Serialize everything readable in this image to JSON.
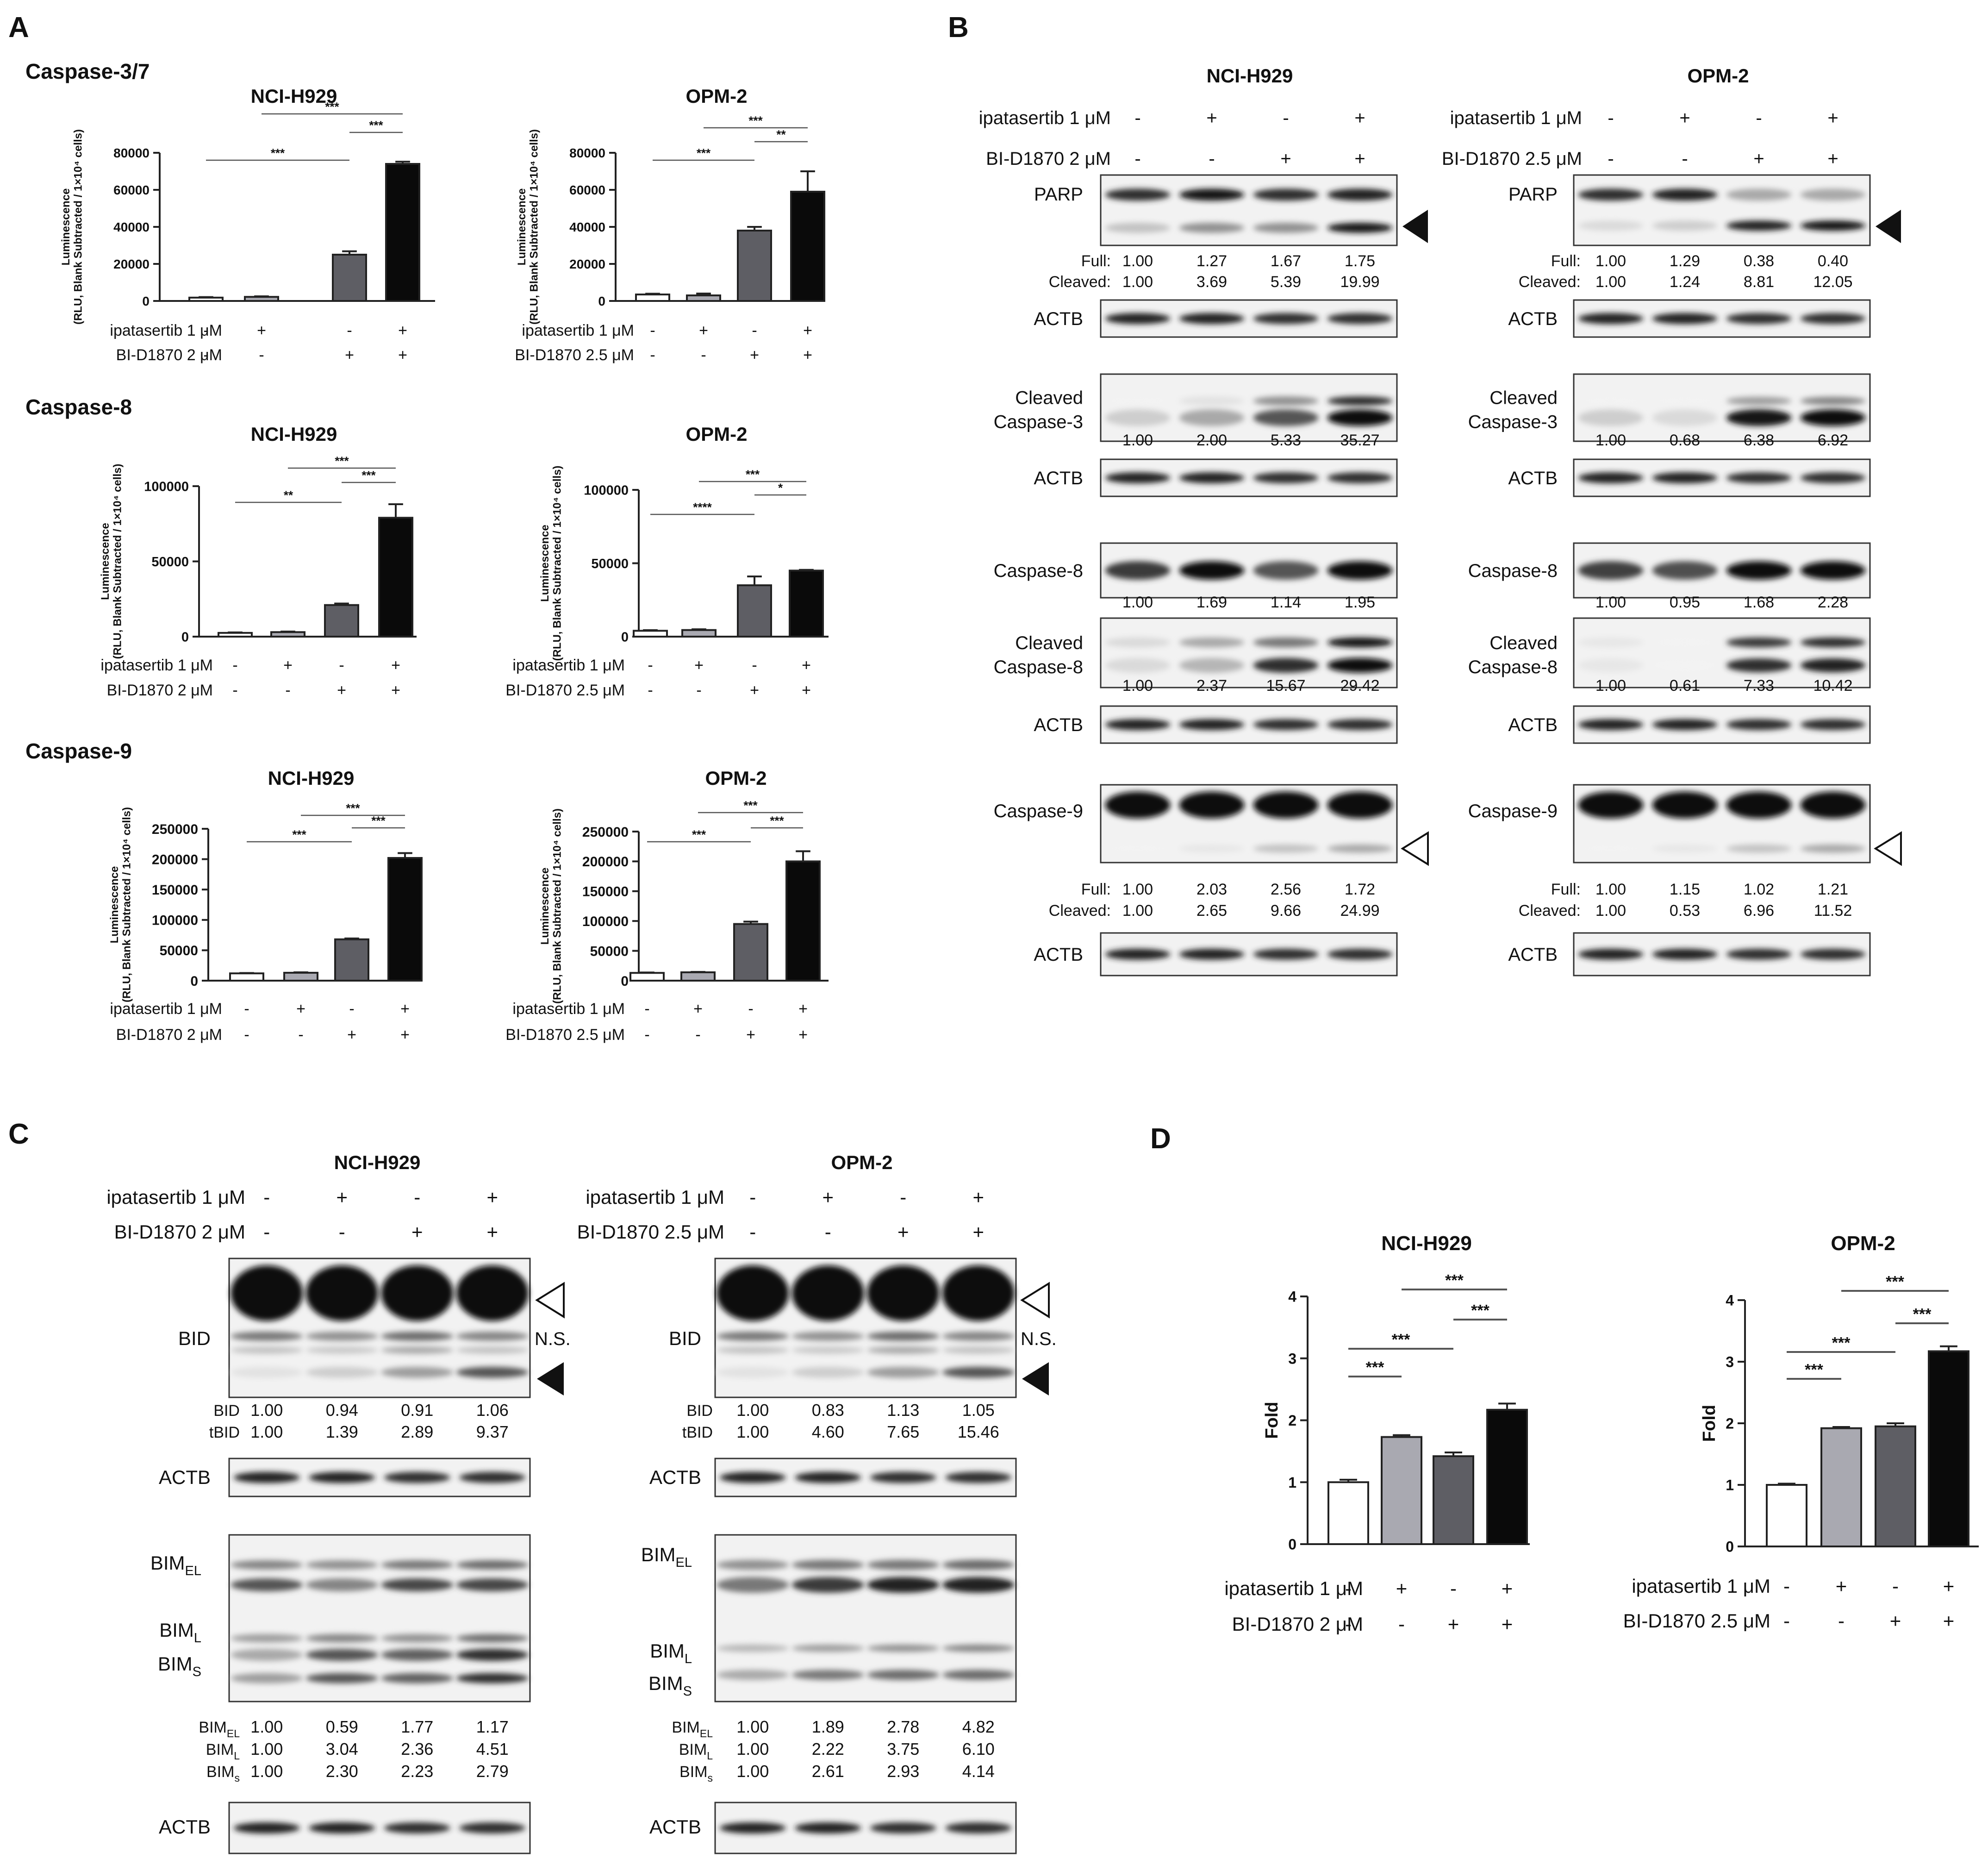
{
  "panel_letters": {
    "a": "A",
    "b": "B",
    "c": "C",
    "d": "D"
  },
  "colors": {
    "white_bar": "#ffffff",
    "light_bar": "#a9a9b1",
    "mid_bar": "#5e5e64",
    "black_bar": "#0a0a0a",
    "line": "#222222",
    "sig_line": "#555555"
  },
  "panel_a": {
    "section_labels": [
      "Caspase-3/7",
      "Caspase-8",
      "Caspase-9"
    ],
    "lines": [
      "NCI-H929",
      "OPM-2"
    ],
    "treat_row1_label": "ipatasertib 1 μM",
    "treat_row2_labels": [
      "BI-D1870 2 μM",
      "BI-D1870 2.5 μM"
    ],
    "treat_row1_marks": [
      "-",
      "+",
      "-",
      "+"
    ],
    "treat_row2_marks": [
      "-",
      "-",
      "+",
      "+"
    ],
    "ylabel_lines": [
      "Luminescence",
      "(RLU, Blank Subtracted / 1×10⁴ cells)"
    ]
  },
  "chart_data": [
    {
      "type": "bar",
      "cell_line": "NCI-H929",
      "assay": "Caspase-3/7",
      "categories": [
        "1",
        "2",
        "3",
        "4"
      ],
      "values": [
        1800,
        2200,
        25000,
        74000
      ],
      "errors": [
        300,
        300,
        1800,
        1200
      ],
      "ylim": [
        0,
        80000
      ],
      "yticks": [
        "0",
        "20000",
        "40000",
        "60000",
        "80000"
      ],
      "ytick_values": [
        0,
        20000,
        40000,
        60000,
        80000
      ],
      "ylabel": "Luminescence (RLU, Blank Subtracted / 1×10⁴ cells)",
      "sig": [
        {
          "a": 1,
          "b": 3,
          "label": "***"
        },
        {
          "a": 3,
          "b": 4,
          "label": "***"
        },
        {
          "a": 2,
          "b": 4,
          "label": "***"
        }
      ]
    },
    {
      "type": "bar",
      "cell_line": "OPM-2",
      "assay": "Caspase-3/7",
      "categories": [
        "1",
        "2",
        "3",
        "4"
      ],
      "values": [
        3500,
        3000,
        38000,
        59000
      ],
      "errors": [
        400,
        1000,
        2000,
        11000
      ],
      "ylim": [
        0,
        80000
      ],
      "yticks": [
        "0",
        "20000",
        "40000",
        "60000",
        "80000"
      ],
      "ytick_values": [
        0,
        20000,
        40000,
        60000,
        80000
      ],
      "ylabel": "Luminescence (RLU, Blank Subtracted / 1×10⁴ cells)",
      "sig": [
        {
          "a": 1,
          "b": 3,
          "label": "***"
        },
        {
          "a": 3,
          "b": 4,
          "label": "**"
        },
        {
          "a": 2,
          "b": 4,
          "label": "***"
        }
      ]
    },
    {
      "type": "bar",
      "cell_line": "NCI-H929",
      "assay": "Caspase-8",
      "categories": [
        "1",
        "2",
        "3",
        "4"
      ],
      "values": [
        2500,
        3000,
        21000,
        79000
      ],
      "errors": [
        300,
        400,
        1000,
        9000
      ],
      "ylim": [
        0,
        100000
      ],
      "yticks": [
        "0",
        "50000",
        "100000"
      ],
      "ytick_values": [
        0,
        50000,
        100000
      ],
      "ylabel": "Luminescence (RLU, Blank Subtracted / 1×10⁴ cells)",
      "sig": [
        {
          "a": 1,
          "b": 3,
          "label": "**"
        },
        {
          "a": 3,
          "b": 4,
          "label": "***"
        },
        {
          "a": 2,
          "b": 4,
          "label": "***"
        }
      ]
    },
    {
      "type": "bar",
      "cell_line": "OPM-2",
      "assay": "Caspase-8",
      "categories": [
        "1",
        "2",
        "3",
        "4"
      ],
      "values": [
        4000,
        4500,
        35000,
        45000
      ],
      "errors": [
        400,
        500,
        6000,
        500
      ],
      "ylim": [
        0,
        100000
      ],
      "yticks": [
        "0",
        "50000",
        "100000"
      ],
      "ytick_values": [
        0,
        50000,
        100000
      ],
      "ylabel": "Luminescence (RLU, Blank Subtracted / 1×10⁴ cells)",
      "sig": [
        {
          "a": 1,
          "b": 3,
          "label": "****"
        },
        {
          "a": 3,
          "b": 4,
          "label": "*"
        },
        {
          "a": 2,
          "b": 4,
          "label": "***"
        }
      ]
    },
    {
      "type": "bar",
      "cell_line": "NCI-H929",
      "assay": "Caspase-9",
      "categories": [
        "1",
        "2",
        "3",
        "4"
      ],
      "values": [
        12000,
        13000,
        68000,
        202000
      ],
      "errors": [
        600,
        700,
        1500,
        8000
      ],
      "ylim": [
        0,
        250000
      ],
      "yticks": [
        "0",
        "50000",
        "100000",
        "150000",
        "200000",
        "250000"
      ],
      "ytick_values": [
        0,
        50000,
        100000,
        150000,
        200000,
        250000
      ],
      "ylabel": "Luminescence (RLU, Blank Subtracted / 1×10⁴ cells)",
      "sig": [
        {
          "a": 1,
          "b": 3,
          "label": "***"
        },
        {
          "a": 3,
          "b": 4,
          "label": "***"
        },
        {
          "a": 2,
          "b": 4,
          "label": "***"
        }
      ]
    },
    {
      "type": "bar",
      "cell_line": "OPM-2",
      "assay": "Caspase-9",
      "categories": [
        "1",
        "2",
        "3",
        "4"
      ],
      "values": [
        13000,
        14000,
        95000,
        200000
      ],
      "errors": [
        700,
        700,
        4000,
        17000
      ],
      "ylim": [
        0,
        250000
      ],
      "yticks": [
        "0",
        "50000",
        "100000",
        "150000",
        "200000",
        "250000"
      ],
      "ytick_values": [
        0,
        50000,
        100000,
        150000,
        200000,
        250000
      ],
      "ylabel": "Luminescence (RLU, Blank Subtracted / 1×10⁴ cells)",
      "sig": [
        {
          "a": 1,
          "b": 3,
          "label": "***"
        },
        {
          "a": 3,
          "b": 4,
          "label": "***"
        },
        {
          "a": 2,
          "b": 4,
          "label": "***"
        }
      ]
    },
    {
      "type": "bar",
      "cell_line": "NCI-H929",
      "assay": "D",
      "categories": [
        "1",
        "2",
        "3",
        "4"
      ],
      "values": [
        1.0,
        1.73,
        1.42,
        2.17
      ],
      "errors": [
        0.04,
        0.03,
        0.06,
        0.1
      ],
      "ylim": [
        0,
        4
      ],
      "yticks": [
        "0",
        "1",
        "2",
        "3",
        "4"
      ],
      "ytick_values": [
        0,
        1,
        2,
        3,
        4
      ],
      "ylabel": "Fold",
      "title": "NCI-H929",
      "sig": [
        {
          "a": 1,
          "b": 2,
          "label": "***"
        },
        {
          "a": 1,
          "b": 3,
          "label": "***"
        },
        {
          "a": 3,
          "b": 4,
          "label": "***"
        },
        {
          "a": 2,
          "b": 4,
          "label": "***"
        }
      ]
    },
    {
      "type": "bar",
      "cell_line": "OPM-2",
      "assay": "D",
      "categories": [
        "1",
        "2",
        "3",
        "4"
      ],
      "values": [
        1.0,
        1.92,
        1.95,
        3.17
      ],
      "errors": [
        0.02,
        0.02,
        0.05,
        0.08
      ],
      "ylim": [
        0,
        4
      ],
      "yticks": [
        "0",
        "1",
        "2",
        "3",
        "4"
      ],
      "ytick_values": [
        0,
        1,
        2,
        3,
        4
      ],
      "ylabel": "Fold",
      "title": "OPM-2",
      "sig": [
        {
          "a": 1,
          "b": 2,
          "label": "***"
        },
        {
          "a": 1,
          "b": 3,
          "label": "***"
        },
        {
          "a": 3,
          "b": 4,
          "label": "***"
        },
        {
          "a": 2,
          "b": 4,
          "label": "***"
        }
      ]
    }
  ],
  "panel_b": {
    "lines": [
      "NCI-H929",
      "OPM-2"
    ],
    "treat_row1_label": "ipatasertib 1 μM",
    "treat_row2_labels": [
      "BI-D1870 2 μM",
      "BI-D1870 2.5 μM"
    ],
    "treat_row1_marks": [
      "-",
      "+",
      "-",
      "+"
    ],
    "treat_row2_marks": [
      "-",
      "-",
      "+",
      "+"
    ],
    "blots_left": [
      {
        "label": [
          "PARP"
        ],
        "kind": "parp",
        "quant": [
          {
            "name": "Full:",
            "vals": [
              "1.00",
              "1.27",
              "1.67",
              "1.75"
            ]
          },
          {
            "name": "Cleaved:",
            "vals": [
              "1.00",
              "3.69",
              "5.39",
              "19.99"
            ]
          }
        ],
        "arrow": "filled"
      },
      {
        "label": [
          "ACTB"
        ],
        "kind": "actb",
        "quant": []
      },
      {
        "label": [
          "Cleaved",
          "Caspase-3"
        ],
        "kind": "cc3",
        "quant": [
          {
            "name": "",
            "vals": [
              "1.00",
              "2.00",
              "5.33",
              "35.27"
            ]
          }
        ]
      },
      {
        "label": [
          "ACTB"
        ],
        "kind": "actb",
        "quant": []
      },
      {
        "label": [
          "Caspase-8"
        ],
        "kind": "c8",
        "quant": [
          {
            "name": "",
            "vals": [
              "1.00",
              "1.69",
              "1.14",
              "1.95"
            ]
          }
        ]
      },
      {
        "label": [
          "Cleaved",
          "Caspase-8"
        ],
        "kind": "cc8",
        "quant": [
          {
            "name": "",
            "vals": [
              "1.00",
              "2.37",
              "15.67",
              "29.42"
            ]
          }
        ]
      },
      {
        "label": [
          "ACTB"
        ],
        "kind": "actb",
        "quant": []
      },
      {
        "label": [
          "Caspase-9"
        ],
        "kind": "c9",
        "quant": [
          {
            "name": "Full:",
            "vals": [
              "1.00",
              "2.03",
              "2.56",
              "1.72"
            ]
          },
          {
            "name": "Cleaved:",
            "vals": [
              "1.00",
              "2.65",
              "9.66",
              "24.99"
            ]
          }
        ],
        "arrow": "open"
      },
      {
        "label": [
          "ACTB"
        ],
        "kind": "actb",
        "quant": []
      }
    ],
    "blots_right": [
      {
        "label": [
          "PARP"
        ],
        "kind": "parp2",
        "quant": [
          {
            "name": "Full:",
            "vals": [
              "1.00",
              "1.29",
              "0.38",
              "0.40"
            ]
          },
          {
            "name": "Cleaved:",
            "vals": [
              "1.00",
              "1.24",
              "8.81",
              "12.05"
            ]
          }
        ],
        "arrow": "filled"
      },
      {
        "label": [
          "ACTB"
        ],
        "kind": "actb",
        "quant": []
      },
      {
        "label": [
          "Cleaved",
          "Caspase-3"
        ],
        "kind": "cc3b",
        "quant": [
          {
            "name": "",
            "vals": [
              "1.00",
              "0.68",
              "6.38",
              "6.92"
            ]
          }
        ]
      },
      {
        "label": [
          "ACTB"
        ],
        "kind": "actb",
        "quant": []
      },
      {
        "label": [
          "Caspase-8"
        ],
        "kind": "c8b",
        "quant": [
          {
            "name": "",
            "vals": [
              "1.00",
              "0.95",
              "1.68",
              "2.28"
            ]
          }
        ]
      },
      {
        "label": [
          "Cleaved",
          "Caspase-8"
        ],
        "kind": "cc8b",
        "quant": [
          {
            "name": "",
            "vals": [
              "1.00",
              "0.61",
              "7.33",
              "10.42"
            ]
          }
        ]
      },
      {
        "label": [
          "ACTB"
        ],
        "kind": "actb",
        "quant": []
      },
      {
        "label": [
          "Caspase-9"
        ],
        "kind": "c9",
        "quant": [
          {
            "name": "Full:",
            "vals": [
              "1.00",
              "1.15",
              "1.02",
              "1.21"
            ]
          },
          {
            "name": "Cleaved:",
            "vals": [
              "1.00",
              "0.53",
              "6.96",
              "11.52"
            ]
          }
        ],
        "arrow": "open"
      },
      {
        "label": [
          "ACTB"
        ],
        "kind": "actb",
        "quant": []
      }
    ]
  },
  "panel_c": {
    "lines": [
      "NCI-H929",
      "OPM-2"
    ],
    "treat_row1_label": "ipatasertib 1 μM",
    "treat_row2_labels": [
      "BI-D1870 2 μM",
      "BI-D1870 2.5 μM"
    ],
    "treat_row1_marks": [
      "-",
      "+",
      "-",
      "+"
    ],
    "treat_row2_marks": [
      "-",
      "-",
      "+",
      "+"
    ],
    "bid_label": "BID",
    "ns_label": "N.S.",
    "actb_label": "ACTB",
    "bid_quant_names": [
      "BID",
      "tBID"
    ],
    "bid_quant_left": [
      [
        "1.00",
        "0.94",
        "0.91",
        "1.06"
      ],
      [
        "1.00",
        "1.39",
        "2.89",
        "9.37"
      ]
    ],
    "bid_quant_right": [
      [
        "1.00",
        "0.83",
        "1.13",
        "1.05"
      ],
      [
        "1.00",
        "4.60",
        "7.65",
        "15.46"
      ]
    ],
    "bim_labels": [
      {
        "main": "BIM",
        "sub": "EL"
      },
      {
        "main": "BIM",
        "sub": "L"
      },
      {
        "main": "BIM",
        "sub": "S"
      }
    ],
    "bim_quant_names": [
      {
        "main": "BIM",
        "sub": "EL"
      },
      {
        "main": "BIM",
        "sub": "L"
      },
      {
        "main": "BIM",
        "sub": "s"
      }
    ],
    "bim_quant_left": [
      [
        "1.00",
        "0.59",
        "1.77",
        "1.17"
      ],
      [
        "1.00",
        "3.04",
        "2.36",
        "4.51"
      ],
      [
        "1.00",
        "2.30",
        "2.23",
        "2.79"
      ]
    ],
    "bim_quant_right": [
      [
        "1.00",
        "1.89",
        "2.78",
        "4.82"
      ],
      [
        "1.00",
        "2.22",
        "3.75",
        "6.10"
      ],
      [
        "1.00",
        "2.61",
        "2.93",
        "4.14"
      ]
    ]
  },
  "panel_d": {
    "treat_row1_label": "ipatasertib 1 μM",
    "treat_row2_labels": [
      "BI-D1870 2 μM",
      "BI-D1870 2.5 μM"
    ],
    "treat_row1_marks": [
      "-",
      "+",
      "-",
      "+"
    ],
    "treat_row2_marks": [
      "-",
      "-",
      "+",
      "+"
    ]
  }
}
